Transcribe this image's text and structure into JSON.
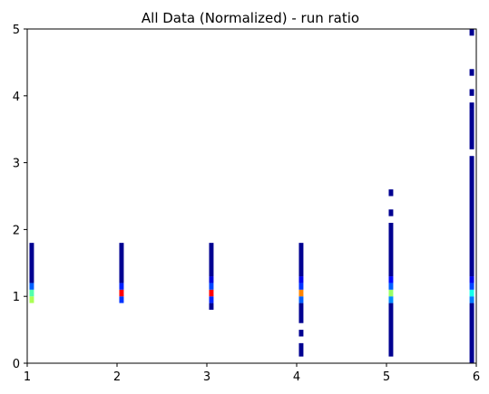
{
  "chart_data": {
    "type": "heatmap",
    "title": "All Data (Normalized) - run ratio",
    "xlabel": "",
    "ylabel": "",
    "xlim": [
      1,
      6
    ],
    "ylim": [
      0,
      5
    ],
    "xticks": [
      "1",
      "2",
      "3",
      "4",
      "5",
      "6"
    ],
    "yticks": [
      "0",
      "1",
      "2",
      "3",
      "4",
      "5"
    ],
    "bin_width": 0.05,
    "bin_height": 0.1,
    "colormap": [
      "#00007f",
      "#0000ff",
      "#007fff",
      "#00ffff",
      "#7fff7f",
      "#ffff00",
      "#ff7f00",
      "#ff0000"
    ],
    "columns": [
      {
        "x": 1.05,
        "cells": [
          {
            "y0": 0.9,
            "y1": 1.0,
            "value": 0.62
          },
          {
            "y0": 1.0,
            "y1": 1.1,
            "value": 0.52
          },
          {
            "y0": 1.1,
            "y1": 1.2,
            "value": 0.25
          },
          {
            "y0": 1.2,
            "y1": 1.8,
            "value": 0.02
          }
        ]
      },
      {
        "x": 2.05,
        "cells": [
          {
            "y0": 0.9,
            "y1": 1.0,
            "value": 0.2
          },
          {
            "y0": 1.0,
            "y1": 1.1,
            "value": 1.0
          },
          {
            "y0": 1.1,
            "y1": 1.2,
            "value": 0.18
          },
          {
            "y0": 1.2,
            "y1": 1.8,
            "value": 0.02
          }
        ]
      },
      {
        "x": 3.05,
        "cells": [
          {
            "y0": 0.8,
            "y1": 0.9,
            "value": 0.02
          },
          {
            "y0": 0.9,
            "y1": 1.0,
            "value": 0.18
          },
          {
            "y0": 1.0,
            "y1": 1.1,
            "value": 1.0
          },
          {
            "y0": 1.1,
            "y1": 1.2,
            "value": 0.22
          },
          {
            "y0": 1.2,
            "y1": 1.3,
            "value": 0.1
          },
          {
            "y0": 1.3,
            "y1": 1.8,
            "value": 0.02
          }
        ]
      },
      {
        "x": 4.05,
        "cells": [
          {
            "y0": 0.1,
            "y1": 0.3,
            "value": 0.02
          },
          {
            "y0": 0.4,
            "y1": 0.5,
            "value": 0.02
          },
          {
            "y0": 0.6,
            "y1": 0.9,
            "value": 0.02
          },
          {
            "y0": 0.9,
            "y1": 1.0,
            "value": 0.25
          },
          {
            "y0": 1.0,
            "y1": 1.1,
            "value": 0.85
          },
          {
            "y0": 1.1,
            "y1": 1.2,
            "value": 0.2
          },
          {
            "y0": 1.2,
            "y1": 1.3,
            "value": 0.12
          },
          {
            "y0": 1.3,
            "y1": 1.8,
            "value": 0.02
          }
        ]
      },
      {
        "x": 5.05,
        "cells": [
          {
            "y0": 0.1,
            "y1": 0.9,
            "value": 0.02
          },
          {
            "y0": 0.9,
            "y1": 1.0,
            "value": 0.3
          },
          {
            "y0": 1.0,
            "y1": 1.1,
            "value": 0.6
          },
          {
            "y0": 1.1,
            "y1": 1.2,
            "value": 0.25
          },
          {
            "y0": 1.2,
            "y1": 1.3,
            "value": 0.15
          },
          {
            "y0": 1.3,
            "y1": 2.1,
            "value": 0.02
          },
          {
            "y0": 2.2,
            "y1": 2.3,
            "value": 0.02
          },
          {
            "y0": 2.5,
            "y1": 2.6,
            "value": 0.02
          }
        ]
      },
      {
        "x": 5.95,
        "cells": [
          {
            "y0": 0.0,
            "y1": 0.9,
            "value": 0.02
          },
          {
            "y0": 0.9,
            "y1": 1.0,
            "value": 0.28
          },
          {
            "y0": 1.0,
            "y1": 1.1,
            "value": 0.45
          },
          {
            "y0": 1.1,
            "y1": 1.2,
            "value": 0.22
          },
          {
            "y0": 1.2,
            "y1": 1.3,
            "value": 0.12
          },
          {
            "y0": 1.3,
            "y1": 3.1,
            "value": 0.02
          },
          {
            "y0": 3.2,
            "y1": 3.8,
            "value": 0.02
          },
          {
            "y0": 3.8,
            "y1": 3.9,
            "value": 0.02
          },
          {
            "y0": 4.0,
            "y1": 4.1,
            "value": 0.02
          },
          {
            "y0": 4.3,
            "y1": 4.4,
            "value": 0.02
          },
          {
            "y0": 4.9,
            "y1": 5.0,
            "value": 0.02
          }
        ]
      }
    ]
  }
}
